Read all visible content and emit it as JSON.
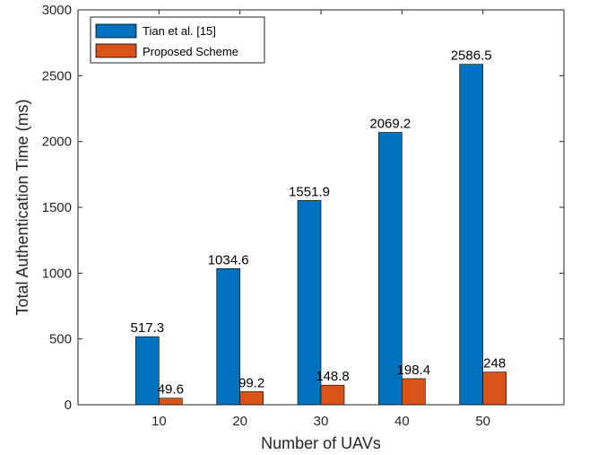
{
  "chart_data": {
    "type": "bar",
    "categories": [
      "10",
      "20",
      "30",
      "40",
      "50"
    ],
    "series": [
      {
        "name": "Tian et al. [15]",
        "values": [
          517.3,
          1034.6,
          1551.9,
          2069.2,
          2586.5
        ],
        "labels": [
          "517.3",
          "1034.6",
          "1551.9",
          "2069.2",
          "2586.5"
        ],
        "color": "#0072BD"
      },
      {
        "name": "Proposed Scheme",
        "values": [
          49.6,
          99.2,
          148.8,
          198.4,
          248
        ],
        "labels": [
          "49.6",
          "99.2",
          "148.8",
          "198.4",
          "248"
        ],
        "color": "#D95319"
      }
    ],
    "xlabel": "Number of UAVs",
    "ylabel": "Total Authentication Time (ms)",
    "ylim": [
      0,
      3000
    ],
    "yticks": [
      0,
      500,
      1000,
      1500,
      2000,
      2500,
      3000
    ],
    "ytick_labels": [
      "0",
      "500",
      "1000",
      "1500",
      "2000",
      "2500",
      "3000"
    ],
    "grid": false,
    "legend_position": "top-left"
  }
}
